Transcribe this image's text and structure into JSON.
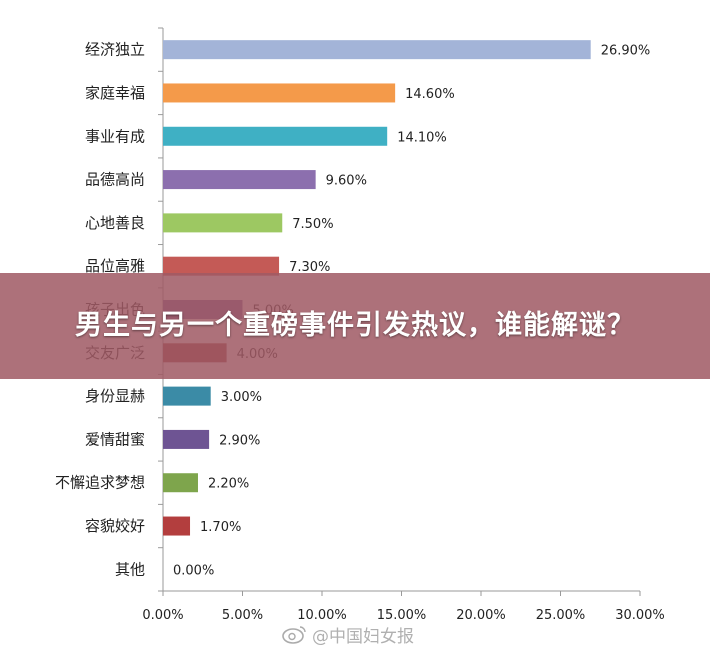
{
  "chart_data": {
    "type": "bar",
    "orientation": "horizontal",
    "categories": [
      "经济独立",
      "家庭幸福",
      "事业有成",
      "品德高尚",
      "心地善良",
      "品位高雅",
      "孩子出色",
      "交友广泛",
      "身份显赫",
      "爱情甜蜜",
      "不懈追求梦想",
      "容貌姣好",
      "其他"
    ],
    "values": [
      26.9,
      14.6,
      14.1,
      9.6,
      7.5,
      7.3,
      5.0,
      4.0,
      3.0,
      2.9,
      2.2,
      1.7,
      0.0
    ],
    "value_labels": [
      "26.90%",
      "14.60%",
      "14.10%",
      "9.60%",
      "7.50%",
      "7.30%",
      "5.00%",
      "4.00%",
      "3.00%",
      "2.90%",
      "2.20%",
      "1.70%",
      "0.00%"
    ],
    "colors": [
      "#a3b4d8",
      "#f49a4a",
      "#3fb0c4",
      "#8c6fae",
      "#9dc862",
      "#c45a56",
      "#7a5f9e",
      "#9b3d3a",
      "#3b8ba6",
      "#6e5493",
      "#7ea54c",
      "#b33e3e",
      "#b33e3e"
    ],
    "xlim": [
      0,
      30
    ],
    "xticks": [
      "0.00%",
      "5.00%",
      "10.00%",
      "15.00%",
      "20.00%",
      "25.00%",
      "30.00%"
    ],
    "title": "",
    "xlabel": "",
    "ylabel": "",
    "grid": false
  },
  "banner": {
    "text": "男生与另一个重磅事件引发热议，谁能解谜？"
  },
  "watermark": {
    "text": "@中国妇女报",
    "icon": "weibo-icon"
  }
}
